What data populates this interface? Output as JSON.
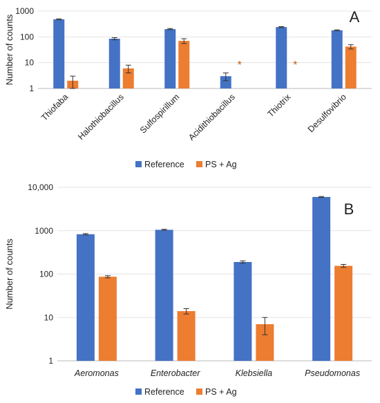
{
  "colors": {
    "reference": "#4472c4",
    "ps_ag": "#ed7d31",
    "star": "#c55a11"
  },
  "chart_data": [
    {
      "type": "bar",
      "panel_label": "A",
      "ylabel": "Number of counts",
      "yscale": "log",
      "ylim": [
        1,
        1000
      ],
      "yticks": [
        "1",
        "10",
        "100",
        "1000"
      ],
      "grid": true,
      "categories": [
        "Thiofaba",
        "Halothiobacillus",
        "Sulfospirillum",
        "Acidithiobacillus",
        "Thiotrix",
        "Desulfovibrio"
      ],
      "categories_italic": false,
      "series": [
        {
          "name": "Reference",
          "values": [
            480,
            85,
            200,
            3,
            240,
            180
          ],
          "errors": [
            20,
            8,
            10,
            1,
            10,
            8
          ]
        },
        {
          "name": "PS + Ag",
          "values": [
            2,
            6,
            70,
            null,
            null,
            42
          ],
          "errors": [
            1,
            2,
            15,
            null,
            null,
            8
          ]
        }
      ],
      "markers": [
        {
          "category": "Acidithiobacillus",
          "series": "PS + Ag",
          "symbol": "*"
        },
        {
          "category": "Thiotrix",
          "series": "PS + Ag",
          "symbol": "*"
        }
      ],
      "legend": {
        "placement": "bottom",
        "entries": [
          "Reference",
          "PS + Ag"
        ]
      }
    },
    {
      "type": "bar",
      "panel_label": "B",
      "ylabel": "Number of counts",
      "yscale": "log",
      "ylim": [
        1,
        10000
      ],
      "yticks": [
        "1",
        "10",
        "100",
        "1000",
        "10,000"
      ],
      "grid": true,
      "categories": [
        "Aeromonas",
        "Enterobacter",
        "Klebsiella",
        "Pseudomonas"
      ],
      "categories_italic": true,
      "series": [
        {
          "name": "Reference",
          "values": [
            830,
            1050,
            190,
            6000
          ],
          "errors": [
            30,
            30,
            12,
            150
          ]
        },
        {
          "name": "PS + Ag",
          "values": [
            87,
            14,
            7,
            155
          ],
          "errors": [
            5,
            2,
            3,
            12
          ]
        }
      ],
      "legend": {
        "placement": "bottom",
        "entries": [
          "Reference",
          "PS + Ag"
        ]
      }
    }
  ]
}
